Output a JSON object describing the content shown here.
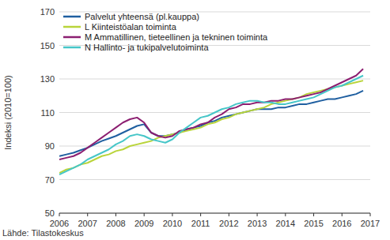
{
  "chart_data": {
    "type": "line",
    "y_label": "Indeksi (2010=100)",
    "source": "Lähde: Tilastokeskus",
    "x": [
      2006,
      2006.25,
      2006.5,
      2006.75,
      2007,
      2007.25,
      2007.5,
      2007.75,
      2008,
      2008.25,
      2008.5,
      2008.75,
      2009,
      2009.25,
      2009.5,
      2009.75,
      2010,
      2010.25,
      2010.5,
      2010.75,
      2011,
      2011.25,
      2011.5,
      2011.75,
      2012,
      2012.25,
      2012.5,
      2012.75,
      2013,
      2013.25,
      2013.5,
      2013.75,
      2014,
      2014.25,
      2014.5,
      2014.75,
      2015,
      2015.25,
      2015.5,
      2015.75,
      2016,
      2016.25,
      2016.5,
      2016.75
    ],
    "series": [
      {
        "name": "Palvelut yhteensä (pl.kauppa)",
        "color": "#1f5fa0",
        "values": [
          84,
          85,
          86,
          87.5,
          89,
          91,
          93,
          94.5,
          96,
          98,
          100,
          102,
          103,
          98,
          96,
          96,
          97,
          98,
          100,
          101,
          102,
          104,
          105,
          107,
          108,
          109,
          110,
          111,
          112,
          112,
          112,
          113,
          113,
          114,
          115,
          115,
          116,
          117,
          118,
          118,
          119,
          120,
          121,
          123
        ]
      },
      {
        "name": "L Kiinteistöalan toiminta",
        "color": "#b9d43a",
        "values": [
          74,
          76,
          77,
          79,
          80,
          82,
          84,
          85,
          87,
          88,
          90,
          91,
          92,
          93,
          95,
          96,
          97,
          98,
          99,
          100,
          101,
          103,
          104,
          106,
          107,
          109,
          110,
          111,
          112,
          113,
          115,
          116,
          117,
          118,
          119,
          121,
          122,
          123,
          124,
          125,
          126,
          127,
          128,
          129
        ]
      },
      {
        "name": "M Ammatillinen, tieteellinen ja tekninen toiminta",
        "color": "#8c1f71",
        "values": [
          82,
          83,
          84,
          86,
          89,
          92,
          95,
          98,
          101,
          104,
          106,
          107,
          104,
          98,
          96,
          95,
          96,
          99,
          100,
          101,
          103,
          104,
          107,
          109,
          112,
          113,
          115,
          115,
          116,
          116,
          117,
          117,
          118,
          118,
          119,
          120,
          121,
          122,
          124,
          126,
          128,
          130,
          132,
          136
        ]
      },
      {
        "name": "N Hallinto- ja tukipalvelutoiminta",
        "color": "#46c6c8",
        "values": [
          73,
          75,
          77,
          79,
          82,
          84,
          86,
          88,
          91,
          93,
          96,
          97,
          96,
          94,
          93,
          92,
          94,
          98,
          101,
          104,
          107,
          108,
          110,
          112,
          113,
          115,
          116,
          117,
          117,
          116,
          116,
          115,
          115,
          116,
          117,
          118,
          119,
          121,
          123,
          125,
          126,
          128,
          130,
          132
        ]
      }
    ],
    "xlim": [
      2006,
      2017
    ],
    "xticks": [
      2006,
      2007,
      2008,
      2009,
      2010,
      2011,
      2012,
      2013,
      2014,
      2015,
      2016,
      2017
    ],
    "ylim": [
      50,
      170
    ],
    "yticks": [
      50,
      70,
      90,
      110,
      130,
      150,
      170
    ],
    "grid": true,
    "legend": "upper left"
  }
}
